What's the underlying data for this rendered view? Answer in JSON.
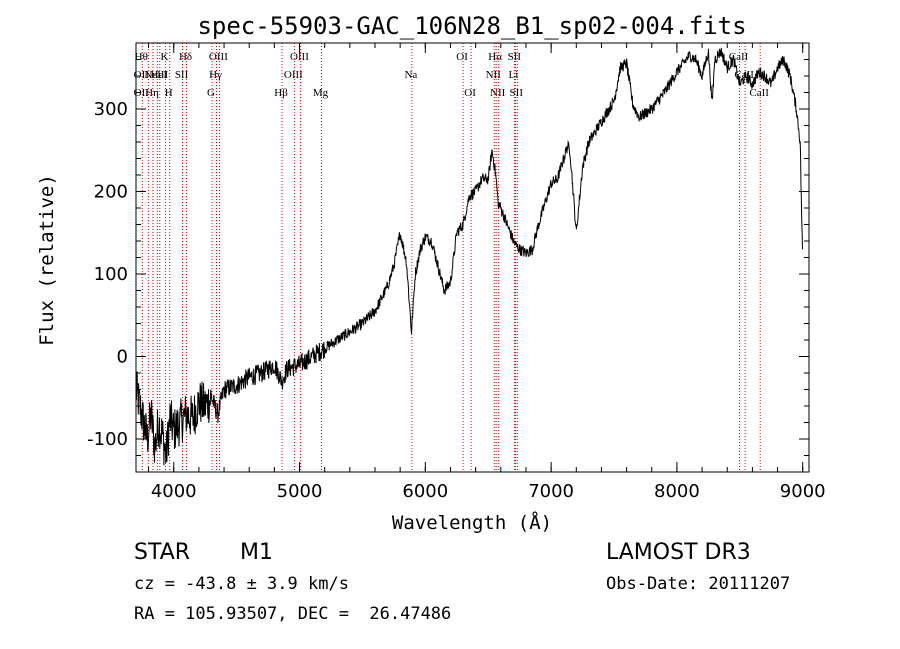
{
  "chart_data": {
    "type": "line",
    "title": "spec-55903-GAC_106N28_B1_sp02-004.fits",
    "xlabel": "Wavelength (Å)",
    "ylabel": "Flux (relative)",
    "xlim": [
      3700,
      9050
    ],
    "ylim": [
      -140,
      380
    ],
    "xticks": [
      4000,
      5000,
      6000,
      7000,
      8000,
      9000
    ],
    "yticks": [
      -100,
      0,
      100,
      200,
      300
    ],
    "series": [
      {
        "name": "flux",
        "x": [
          3700,
          3730,
          3760,
          3790,
          3820,
          3850,
          3880,
          3910,
          3940,
          3970,
          4000,
          4050,
          4100,
          4150,
          4200,
          4250,
          4300,
          4350,
          4400,
          4500,
          4600,
          4700,
          4800,
          4860,
          4900,
          5000,
          5100,
          5200,
          5300,
          5400,
          5500,
          5600,
          5700,
          5750,
          5800,
          5850,
          5890,
          5920,
          5960,
          6000,
          6050,
          6100,
          6150,
          6200,
          6250,
          6300,
          6350,
          6400,
          6450,
          6500,
          6530,
          6560,
          6580,
          6600,
          6650,
          6700,
          6720,
          6750,
          6800,
          6850,
          6900,
          6950,
          7000,
          7050,
          7100,
          7130,
          7150,
          7200,
          7250,
          7300,
          7400,
          7500,
          7550,
          7600,
          7650,
          7700,
          7800,
          7900,
          8000,
          8100,
          8150,
          8200,
          8250,
          8280,
          8300,
          8350,
          8400,
          8450,
          8500,
          8550,
          8600,
          8650,
          8700,
          8750,
          8800,
          8850,
          8900,
          8950,
          8980,
          9000
        ],
        "y": [
          -40,
          -60,
          -80,
          -100,
          -70,
          -110,
          -80,
          -95,
          -120,
          -75,
          -90,
          -80,
          -70,
          -75,
          -55,
          -60,
          -50,
          -70,
          -40,
          -35,
          -25,
          -20,
          -10,
          -30,
          -15,
          -10,
          0,
          10,
          20,
          30,
          40,
          55,
          85,
          110,
          150,
          115,
          30,
          100,
          130,
          145,
          140,
          110,
          80,
          90,
          150,
          160,
          195,
          200,
          215,
          215,
          250,
          220,
          185,
          180,
          160,
          140,
          135,
          130,
          125,
          130,
          160,
          185,
          210,
          215,
          240,
          255,
          250,
          150,
          230,
          260,
          285,
          310,
          350,
          355,
          305,
          290,
          300,
          320,
          345,
          365,
          360,
          340,
          370,
          305,
          360,
          370,
          350,
          360,
          330,
          340,
          330,
          345,
          340,
          330,
          350,
          360,
          340,
          300,
          260,
          110
        ]
      }
    ],
    "lines": [
      {
        "x": 3750,
        "labels": [
          {
            "row": 0,
            "text": "Hθ"
          },
          {
            "row": 1,
            "text": "OII"
          },
          {
            "row": 2,
            "text": "OII"
          }
        ]
      },
      {
        "x": 3798,
        "labels": []
      },
      {
        "x": 3835,
        "labels": [
          {
            "row": 2,
            "text": "Hη"
          }
        ]
      },
      {
        "x": 3869,
        "labels": [
          {
            "row": 1,
            "text": "NeIII"
          }
        ]
      },
      {
        "x": 3889,
        "labels": [
          {
            "row": 1,
            "text": "HeI"
          }
        ]
      },
      {
        "x": 3934,
        "labels": [
          {
            "row": 0,
            "text": "K"
          }
        ]
      },
      {
        "x": 3968,
        "labels": [
          {
            "row": 2,
            "text": "H"
          }
        ]
      },
      {
        "x": 4070,
        "labels": [
          {
            "row": 1,
            "text": "SII"
          }
        ]
      },
      {
        "x": 4102,
        "labels": [
          {
            "row": 0,
            "text": "Hδ"
          }
        ]
      },
      {
        "x": 4304,
        "labels": [
          {
            "row": 2,
            "text": "G"
          }
        ]
      },
      {
        "x": 4340,
        "labels": [
          {
            "row": 1,
            "text": "Hγ"
          }
        ]
      },
      {
        "x": 4363,
        "labels": [
          {
            "row": 0,
            "text": "OIII"
          }
        ]
      },
      {
        "x": 4861,
        "labels": [
          {
            "row": 2,
            "text": "Hβ"
          }
        ]
      },
      {
        "x": 4959,
        "labels": [
          {
            "row": 1,
            "text": "OIII"
          }
        ]
      },
      {
        "x": 5007,
        "labels": [
          {
            "row": 0,
            "text": "OIII"
          }
        ]
      },
      {
        "x": 5175,
        "labels": [
          {
            "row": 2,
            "text": "Mg"
          }
        ]
      },
      {
        "x": 5893,
        "labels": [
          {
            "row": 1,
            "text": "Na"
          }
        ]
      },
      {
        "x": 6300,
        "labels": [
          {
            "row": 0,
            "text": "OI"
          }
        ]
      },
      {
        "x": 6364,
        "labels": [
          {
            "row": 2,
            "text": "OI"
          }
        ]
      },
      {
        "x": 6548,
        "labels": [
          {
            "row": 1,
            "text": "NII"
          }
        ]
      },
      {
        "x": 6563,
        "labels": [
          {
            "row": 0,
            "text": "Hα"
          }
        ]
      },
      {
        "x": 6583,
        "labels": [
          {
            "row": 2,
            "text": "NII"
          }
        ]
      },
      {
        "x": 6708,
        "labels": [
          {
            "row": 1,
            "text": "Li"
          }
        ]
      },
      {
        "x": 6716,
        "labels": [
          {
            "row": 0,
            "text": "SII"
          }
        ]
      },
      {
        "x": 6731,
        "labels": [
          {
            "row": 2,
            "text": "SII"
          }
        ]
      },
      {
        "x": 8498,
        "labels": [
          {
            "row": 0,
            "text": "CaII"
          }
        ]
      },
      {
        "x": 8542,
        "labels": [
          {
            "row": 1,
            "text": "CaII"
          }
        ]
      },
      {
        "x": 8662,
        "labels": [
          {
            "row": 2,
            "text": "CaII"
          }
        ]
      }
    ]
  },
  "info": {
    "object_class": "STAR",
    "subclass": "M1",
    "survey": "LAMOST DR3",
    "cz": "cz = -43.8 ± 3.9 km/s",
    "obs_date": "Obs-Date: 20111207",
    "coords": "RA = 105.93507, DEC =  26.47486"
  },
  "colors": {
    "spectrum": "#000000",
    "line_markers": "#cc0000",
    "axes": "#000000"
  }
}
